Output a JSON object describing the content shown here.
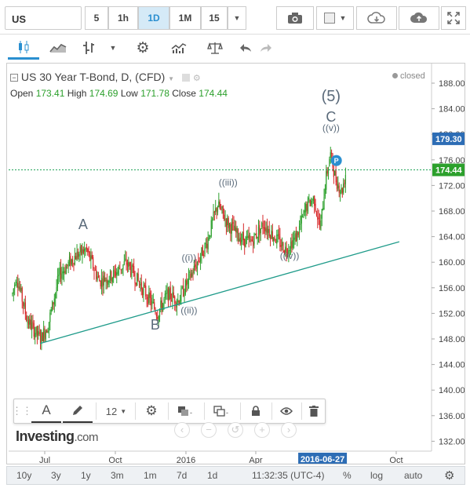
{
  "topbar": {
    "symbol": "US",
    "timeframes": [
      "5",
      "1h",
      "1D",
      "1M",
      "15"
    ],
    "active_timeframe": "1D"
  },
  "legend": {
    "title": "US 30 Year T-Bond, D, (CFD)",
    "status": "closed",
    "open_label": "Open",
    "open": "173.41",
    "high_label": "High",
    "high": "174.69",
    "low_label": "Low",
    "low": "171.78",
    "close_label": "Close",
    "close": "174.44"
  },
  "drawing_toolbar": {
    "font_size": "12"
  },
  "logo": {
    "main": "Investing",
    "suffix": ".com"
  },
  "bottombar": {
    "ranges": [
      "10y",
      "3y",
      "1y",
      "3m",
      "1m",
      "7d",
      "1d"
    ],
    "time": "11:32:35 (UTC-4)",
    "options": [
      "%",
      "log",
      "auto"
    ]
  },
  "colors": {
    "up": "#2ca02c",
    "down": "#d62728",
    "price_line": "#22a35a",
    "trend_line": "#1f9b8a",
    "axis_highlight": "#2d6db5",
    "active_tf": "#2a8fd0"
  },
  "chart_data": {
    "type": "candlestick",
    "y_ticks": [
      "188.00",
      "184.00",
      "180.00",
      "176.00",
      "172.00",
      "168.00",
      "164.00",
      "160.00",
      "156.00",
      "152.00",
      "148.00",
      "144.00",
      "140.00",
      "136.00",
      "132.00"
    ],
    "x_ticks": [
      "Jul",
      "Oct",
      "2016",
      "Apr",
      "Oct"
    ],
    "ylim": [
      130,
      190
    ],
    "highlighted_date": "2016-06-27",
    "price_markers": [
      {
        "label": "179.30",
        "value": 179.3
      },
      {
        "label": "174.44",
        "value": 174.44
      }
    ],
    "current_price": 174.44,
    "price_anchors": [
      {
        "date": "2015-05-20",
        "price": 155
      },
      {
        "date": "2015-05-25",
        "price": 158
      },
      {
        "date": "2015-06-08",
        "price": 151
      },
      {
        "date": "2015-06-25",
        "price": 148
      },
      {
        "date": "2015-07-05",
        "price": 150
      },
      {
        "date": "2015-07-20",
        "price": 158
      },
      {
        "date": "2015-08-10",
        "price": 161
      },
      {
        "date": "2015-08-24",
        "price": 162
      },
      {
        "date": "2015-09-10",
        "price": 157
      },
      {
        "date": "2015-09-28",
        "price": 158
      },
      {
        "date": "2015-10-15",
        "price": 160
      },
      {
        "date": "2015-11-05",
        "price": 156
      },
      {
        "date": "2015-11-25",
        "price": 152
      },
      {
        "date": "2015-12-08",
        "price": 155
      },
      {
        "date": "2015-12-22",
        "price": 154
      },
      {
        "date": "2016-01-12",
        "price": 159
      },
      {
        "date": "2016-01-28",
        "price": 163
      },
      {
        "date": "2016-02-11",
        "price": 169
      },
      {
        "date": "2016-02-25",
        "price": 166
      },
      {
        "date": "2016-03-10",
        "price": 164
      },
      {
        "date": "2016-03-25",
        "price": 163
      },
      {
        "date": "2016-04-11",
        "price": 166
      },
      {
        "date": "2016-04-25",
        "price": 164
      },
      {
        "date": "2016-05-10",
        "price": 162
      },
      {
        "date": "2016-05-24",
        "price": 164
      },
      {
        "date": "2016-06-07",
        "price": 169
      },
      {
        "date": "2016-06-16",
        "price": 170
      },
      {
        "date": "2016-06-24",
        "price": 165
      },
      {
        "date": "2016-06-30",
        "price": 172
      },
      {
        "date": "2016-07-07",
        "price": 177
      },
      {
        "date": "2016-07-14",
        "price": 173
      },
      {
        "date": "2016-07-22",
        "price": 171
      },
      {
        "date": "2016-07-28",
        "price": 174.44
      }
    ],
    "trendline": [
      {
        "date": "2015-06-25",
        "price": 147.3
      },
      {
        "date": "2016-10-05",
        "price": 163.2
      }
    ],
    "wave_labels": [
      {
        "text": "A",
        "date": "2015-08-20",
        "price": 165.2
      },
      {
        "text": "B",
        "date": "2015-11-22",
        "price": 149.5
      },
      {
        "text": "((i))",
        "date": "2016-01-05",
        "price": 160.2
      },
      {
        "text": "((ii))",
        "date": "2016-01-05",
        "price": 152.0
      },
      {
        "text": "((iii))",
        "date": "2016-02-25",
        "price": 172.0
      },
      {
        "text": "((iv))",
        "date": "2016-05-15",
        "price": 160.5
      },
      {
        "text": "((v))",
        "date": "2016-07-08",
        "price": 180.5
      },
      {
        "text": "C",
        "date": "2016-07-08",
        "price": 182.0
      },
      {
        "text": "(5)",
        "date": "2016-07-08",
        "price": 185.2
      }
    ],
    "marker": {
      "text": "P",
      "date": "2016-07-15",
      "price": 175.9
    }
  }
}
